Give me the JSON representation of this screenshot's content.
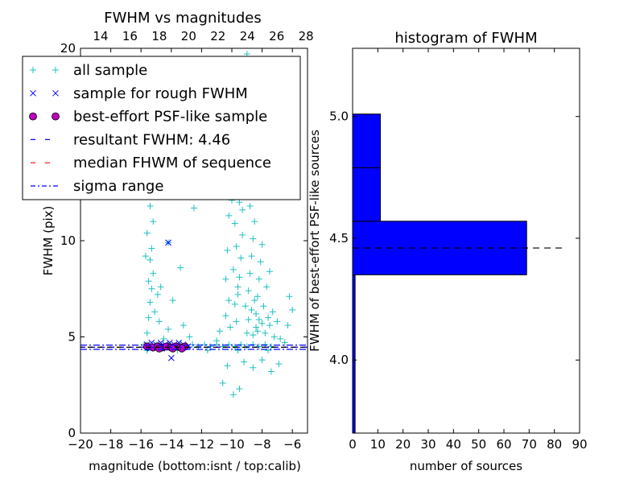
{
  "chart_data": [
    {
      "type": "scatter",
      "title": "FWHM vs magnitudes",
      "xlabel": "magnitude (bottom:isnt / top:calib)",
      "ylabel": "FWHM (pix)",
      "xlim": [
        -20,
        -5
      ],
      "ylim": [
        0,
        20
      ],
      "x_ticks": [
        -20,
        -18,
        -16,
        -14,
        -12,
        -10,
        -8,
        -6
      ],
      "x_tick_labels": [
        "−20",
        "−18",
        "−16",
        "−14",
        "−12",
        "−10",
        "−8",
        "−6"
      ],
      "top_ticks": [
        14,
        16,
        18,
        20,
        22,
        24,
        26,
        28
      ],
      "top_lim": [
        12.63,
        28.1
      ],
      "y_ticks": [
        0,
        5,
        10,
        20
      ],
      "y_tick_labels": [
        "0",
        "5",
        "10",
        "20"
      ],
      "grid": false,
      "legend": {
        "placement": "upper-left",
        "entries": [
          {
            "label": "all sample",
            "marker": "plus",
            "color": "#20c0c0"
          },
          {
            "label": "sample for rough FWHM",
            "marker": "x",
            "color": "#0000ff"
          },
          {
            "label": "best-effort PSF-like sample",
            "marker": "circle",
            "color": "#bf00bf"
          },
          {
            "label": "resultant FWHM: 4.46",
            "marker": "dashed",
            "color": "#0000ff"
          },
          {
            "label": "median FHWM of sequence",
            "marker": "dashed",
            "color": "#ff0000"
          },
          {
            "label": "sigma range",
            "marker": "dashdot",
            "color": "#0000ff"
          }
        ]
      },
      "lines": {
        "resultant_fwhm": 4.46,
        "median_fwhm": 4.46,
        "sigma_range": [
          4.35,
          4.57
        ]
      },
      "series": [
        {
          "name": "all sample",
          "points": [
            [
              -15.8,
              4.6
            ],
            [
              -15.4,
              4.5
            ],
            [
              -15.0,
              4.6
            ],
            [
              -14.6,
              4.5
            ],
            [
              -14.2,
              4.6
            ],
            [
              -13.8,
              4.5
            ],
            [
              -13.4,
              4.6
            ],
            [
              -13.0,
              4.5
            ],
            [
              -12.6,
              4.6
            ],
            [
              -12.2,
              4.5
            ],
            [
              -11.8,
              4.6
            ],
            [
              -11.4,
              4.5
            ],
            [
              -11.0,
              4.6
            ],
            [
              -10.6,
              4.5
            ],
            [
              -10.2,
              4.6
            ],
            [
              -9.8,
              4.5
            ],
            [
              -9.4,
              4.6
            ],
            [
              -9.0,
              4.5
            ],
            [
              -8.6,
              4.6
            ],
            [
              -8.2,
              4.5
            ],
            [
              -7.8,
              4.6
            ],
            [
              -7.4,
              4.5
            ],
            [
              -15.6,
              4.3
            ],
            [
              -13.6,
              4.3
            ],
            [
              -11.6,
              4.3
            ],
            [
              -9.6,
              4.3
            ],
            [
              -7.6,
              4.3
            ],
            [
              -15.6,
              5.2
            ],
            [
              -15.5,
              6.0
            ],
            [
              -15.4,
              6.8
            ],
            [
              -15.3,
              7.5
            ],
            [
              -15.5,
              7.9
            ],
            [
              -15.2,
              8.3
            ],
            [
              -15.4,
              9.0
            ],
            [
              -15.3,
              9.6
            ],
            [
              -15.6,
              10.4
            ],
            [
              -15.2,
              11.0
            ],
            [
              -15.4,
              11.8
            ],
            [
              -15.1,
              6.3
            ],
            [
              -14.9,
              7.2
            ],
            [
              -14.8,
              5.8
            ],
            [
              -14.7,
              7.6
            ],
            [
              -15.7,
              9.2
            ],
            [
              -14.5,
              4.9
            ],
            [
              -14.2,
              5.4
            ],
            [
              -13.9,
              6.9
            ],
            [
              -12.8,
              5.0
            ],
            [
              -13.4,
              8.6
            ],
            [
              -12.5,
              11.7
            ],
            [
              -13.2,
              5.6
            ],
            [
              -14.2,
              9.9
            ],
            [
              -11.0,
              4.8
            ],
            [
              -10.8,
              5.3
            ],
            [
              -10.4,
              6.1
            ],
            [
              -10.1,
              5.5
            ],
            [
              -10.3,
              3.5
            ],
            [
              -10.6,
              2.6
            ],
            [
              -9.9,
              2.0
            ],
            [
              -9.5,
              2.3
            ],
            [
              -9.6,
              7.2
            ],
            [
              -9.5,
              8.1
            ],
            [
              -9.4,
              9.1
            ],
            [
              -9.3,
              10.3
            ],
            [
              -9.3,
              11.6
            ],
            [
              -9.2,
              12.6
            ],
            [
              -9.4,
              13.6
            ],
            [
              -9.1,
              14.9
            ],
            [
              -9.3,
              16.2
            ],
            [
              -9.0,
              17.4
            ],
            [
              -9.2,
              18.6
            ],
            [
              -9.0,
              19.7
            ],
            [
              -8.7,
              19.3
            ],
            [
              -8.4,
              17.2
            ],
            [
              -8.8,
              15.5
            ],
            [
              -8.5,
              13.9
            ],
            [
              -9.1,
              6.6
            ],
            [
              -8.9,
              7.4
            ],
            [
              -8.8,
              8.3
            ],
            [
              -8.7,
              9.2
            ],
            [
              -8.6,
              10.1
            ],
            [
              -8.5,
              11.0
            ],
            [
              -8.8,
              11.8
            ],
            [
              -8.4,
              6.2
            ],
            [
              -8.3,
              7.1
            ],
            [
              -8.2,
              8.0
            ],
            [
              -8.1,
              8.9
            ],
            [
              -8.0,
              9.8
            ],
            [
              -8.4,
              5.5
            ],
            [
              -8.2,
              5.9
            ],
            [
              -7.9,
              6.6
            ],
            [
              -7.7,
              7.6
            ],
            [
              -7.5,
              8.4
            ],
            [
              -7.6,
              6.0
            ],
            [
              -9.0,
              5.2
            ],
            [
              -8.9,
              5.9
            ],
            [
              -8.7,
              6.4
            ],
            [
              -8.6,
              5.1
            ],
            [
              -8.5,
              6.9
            ],
            [
              -8.3,
              5.3
            ],
            [
              -8.0,
              5.7
            ],
            [
              -7.8,
              5.2
            ],
            [
              -7.5,
              5.6
            ],
            [
              -7.3,
              6.3
            ],
            [
              -7.2,
              5.0
            ],
            [
              -7.0,
              5.8
            ],
            [
              -6.8,
              4.9
            ],
            [
              -6.5,
              4.7
            ],
            [
              -6.3,
              5.6
            ],
            [
              -6.2,
              7.1
            ],
            [
              -6.0,
              6.4
            ],
            [
              -6.9,
              3.6
            ],
            [
              -7.4,
              3.2
            ],
            [
              -8.0,
              3.8
            ],
            [
              -8.6,
              3.4
            ],
            [
              -9.2,
              3.7
            ],
            [
              -9.7,
              5.8
            ],
            [
              -9.8,
              6.7
            ],
            [
              -9.6,
              7.6
            ],
            [
              -9.9,
              8.5
            ],
            [
              -9.7,
              9.7
            ],
            [
              -9.8,
              10.9
            ],
            [
              -10.0,
              12.1
            ],
            [
              -10.1,
              13.5
            ],
            [
              -9.9,
              15.1
            ],
            [
              -10.0,
              16.6
            ],
            [
              -9.8,
              18.1
            ],
            [
              -9.5,
              12.0
            ],
            [
              -9.4,
              14.5
            ],
            [
              -9.2,
              16.9
            ],
            [
              -10.2,
              11.3
            ],
            [
              -10.3,
              9.5
            ],
            [
              -10.4,
              8.0
            ],
            [
              -10.2,
              6.9
            ]
          ]
        },
        {
          "name": "sample for rough FWHM",
          "points": [
            [
              -15.6,
              4.6
            ],
            [
              -15.3,
              4.7
            ],
            [
              -15.0,
              4.6
            ],
            [
              -14.7,
              4.7
            ],
            [
              -14.4,
              4.6
            ],
            [
              -14.1,
              4.7
            ],
            [
              -13.8,
              4.6
            ],
            [
              -13.5,
              4.7
            ],
            [
              -13.2,
              4.6
            ],
            [
              -12.9,
              4.5
            ],
            [
              -15.4,
              4.4
            ],
            [
              -14.6,
              4.4
            ],
            [
              -13.6,
              4.4
            ],
            [
              -14.0,
              3.9
            ],
            [
              -14.2,
              9.9
            ]
          ]
        },
        {
          "name": "best-effort PSF-like sample",
          "points": [
            [
              -15.6,
              4.5
            ],
            [
              -15.2,
              4.45
            ],
            [
              -14.9,
              4.5
            ],
            [
              -14.6,
              4.45
            ],
            [
              -14.3,
              4.5
            ],
            [
              -14.0,
              4.45
            ],
            [
              -13.7,
              4.5
            ],
            [
              -13.4,
              4.45
            ],
            [
              -13.1,
              4.5
            ],
            [
              -13.3,
              4.4
            ],
            [
              -14.8,
              4.4
            ],
            [
              -13.9,
              4.4
            ]
          ]
        }
      ]
    },
    {
      "type": "bar",
      "orientation": "horizontal",
      "title": "histogram of FWHM",
      "xlabel": "number of sources",
      "ylabel": "FWHM of best-effort PSF-like sources",
      "xlim": [
        0,
        90
      ],
      "ylim": [
        3.7,
        5.28
      ],
      "x_ticks": [
        0,
        10,
        20,
        30,
        40,
        50,
        60,
        70,
        80,
        90
      ],
      "y_ticks": [
        4.0,
        4.5,
        5.0
      ],
      "y_tick_labels": [
        "4.0",
        "4.5",
        "5.0"
      ],
      "grid": false,
      "bar_color": "#0000ff",
      "bins": [
        {
          "lo": 3.7,
          "hi": 4.35,
          "count": 1
        },
        {
          "lo": 4.35,
          "hi": 4.57,
          "count": 69
        },
        {
          "lo": 4.57,
          "hi": 4.79,
          "count": 11
        },
        {
          "lo": 4.79,
          "hi": 5.01,
          "count": 11
        }
      ],
      "reference_line": 4.46
    }
  ]
}
